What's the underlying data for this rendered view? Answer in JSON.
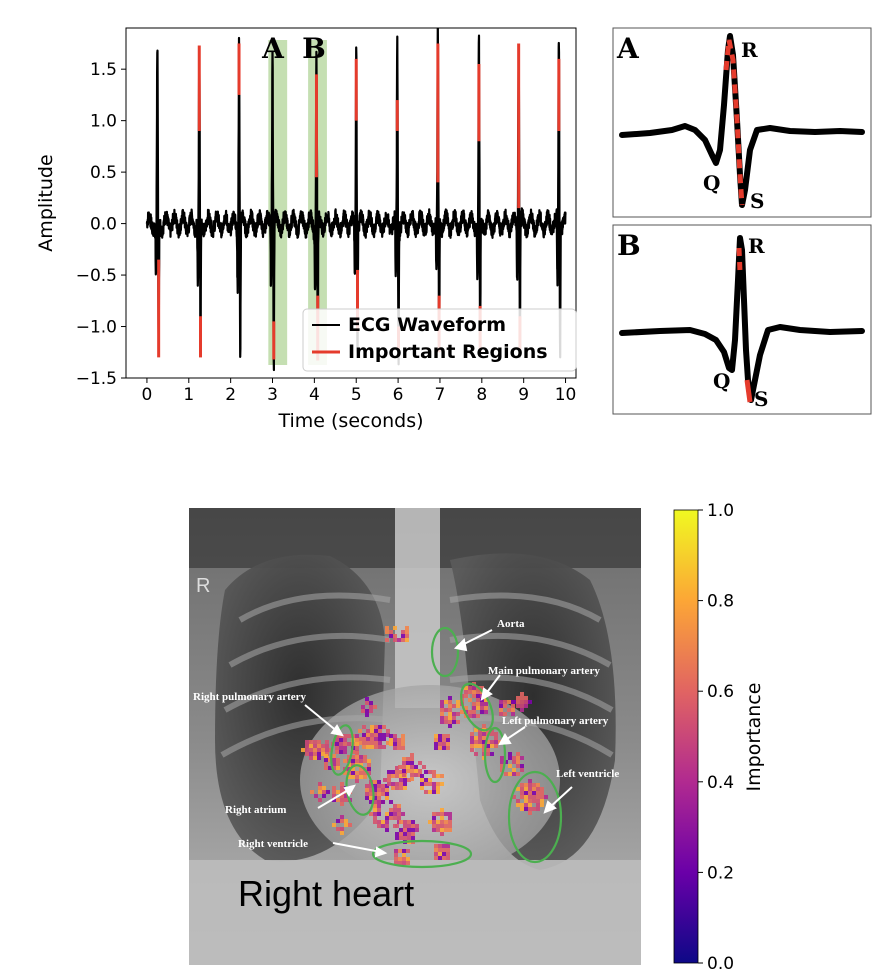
{
  "chart_data": [
    {
      "type": "line",
      "title": "",
      "xlabel": "Time (seconds)",
      "ylabel": "Amplitude",
      "xlim": [
        -0.5,
        10.25
      ],
      "ylim": [
        -1.5,
        1.9
      ],
      "x_ticks": [
        "0",
        "1",
        "2",
        "3",
        "4",
        "5",
        "6",
        "7",
        "8",
        "9",
        "10"
      ],
      "y_ticks": [
        "1.5",
        "1.0",
        "0.5",
        "0.0",
        "−0.5",
        "−1.0",
        "−1.5"
      ],
      "legend": {
        "placement": "bottom-right",
        "entries": [
          "ECG Waveform",
          "Important Regions"
        ]
      },
      "series": [
        {
          "name": "ECG Waveform",
          "color": "#000000",
          "beat_times": [
            0.25,
            1.25,
            2.2,
            3.0,
            4.05,
            5.0,
            5.98,
            6.95,
            7.93,
            8.88,
            9.84
          ],
          "r_peak": [
            1.75,
            1.73,
            1.75,
            1.72,
            1.72,
            1.75,
            1.77,
            1.8,
            1.77,
            1.76,
            1.76
          ],
          "s_trough": [
            -1.3,
            -1.3,
            -1.25,
            -1.32,
            -1.33,
            -1.25,
            -1.25,
            -1.28,
            -1.25,
            -1.25,
            -1.25
          ]
        },
        {
          "name": "Important Regions",
          "color": "#e53b2c",
          "red_segments": [
            {
              "beat": 0,
              "y": [
                -1.3,
                -0.35
              ]
            },
            {
              "beat": 1,
              "y": [
                0.9,
                1.73
              ]
            },
            {
              "beat": 1,
              "y": [
                -1.3,
                -0.9
              ]
            },
            {
              "beat": 2,
              "y": [
                1.25,
                1.75
              ]
            },
            {
              "beat": 3,
              "y": [
                -1.32,
                -0.95
              ]
            },
            {
              "beat": 4,
              "y": [
                0.45,
                1.45
              ]
            },
            {
              "beat": 4,
              "y": [
                -1.33,
                -0.7
              ]
            },
            {
              "beat": 5,
              "y": [
                1.0,
                1.6
              ]
            },
            {
              "beat": 5,
              "y": [
                -1.05,
                -0.45
              ]
            },
            {
              "beat": 6,
              "y": [
                0.9,
                1.2
              ]
            },
            {
              "beat": 6,
              "y": [
                -1.25,
                -1.0
              ]
            },
            {
              "beat": 7,
              "y": [
                0.4,
                1.75
              ]
            },
            {
              "beat": 7,
              "y": [
                -1.25,
                -0.7
              ]
            },
            {
              "beat": 8,
              "y": [
                0.8,
                1.55
              ]
            },
            {
              "beat": 8,
              "y": [
                -1.25,
                -0.8
              ]
            },
            {
              "beat": 9,
              "y": [
                0.15,
                1.75
              ]
            },
            {
              "beat": 9,
              "y": [
                -1.25,
                -0.9
              ]
            },
            {
              "beat": 10,
              "y": [
                0.9,
                1.6
              ]
            }
          ]
        }
      ],
      "highlight_bands": [
        {
          "label": "A",
          "x": [
            2.9,
            3.35
          ],
          "color": "#9ec97f"
        },
        {
          "label": "B",
          "x": [
            3.85,
            4.3
          ],
          "color": "#9ec97f"
        }
      ]
    },
    {
      "type": "heatmap",
      "ylabel": "Importance",
      "colorbar": {
        "range": [
          0.0,
          1.0
        ],
        "ticks": [
          "1.0",
          "0.8",
          "0.6",
          "0.4",
          "0.2",
          "0.0"
        ],
        "colormap": "plasma"
      }
    }
  ],
  "insets": {
    "a": {
      "letter": "A",
      "labels": {
        "q": "Q",
        "r": "R",
        "s": "S"
      }
    },
    "b": {
      "letter": "B",
      "labels": {
        "q": "Q",
        "r": "R",
        "s": "S"
      }
    }
  },
  "xray": {
    "marker": "R",
    "caption": "Right heart",
    "annotations": {
      "aorta": "Aorta",
      "main_pulmonary_artery": "Main pulmonary artery",
      "right_pulmonary_artery": "Right pulmonary artery",
      "left_pulmonary_artery": "Left pulmonary artery",
      "left_ventricle": "Left ventricle",
      "right_atrium": "Right atrium",
      "right_ventricle": "Right ventricle"
    }
  },
  "colors": {
    "ecg": "#000000",
    "important": "#e53b2c",
    "band": "#9ec97f",
    "ellipse": "#4caf50"
  }
}
